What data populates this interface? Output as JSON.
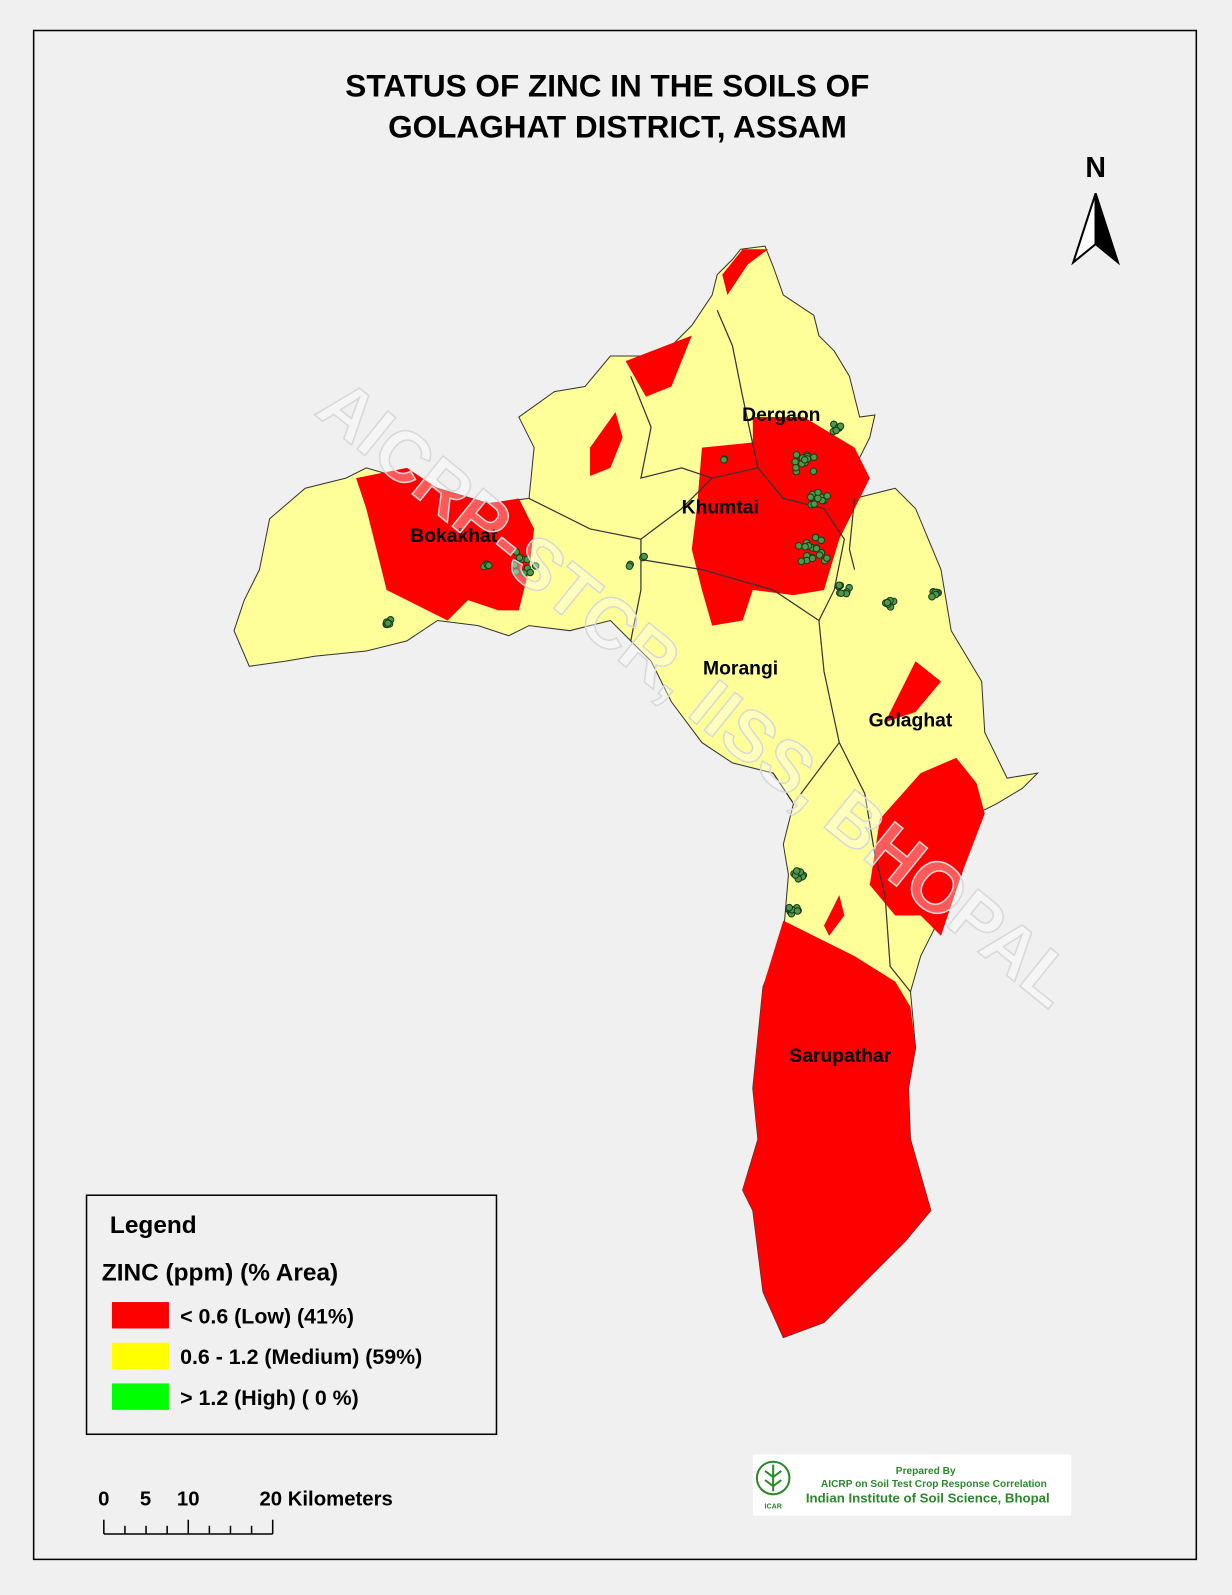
{
  "title": [
    "STATUS OF  ZINC  IN THE SOILS OF",
    "GOLAGHAT  DISTRICT, ASSAM"
  ],
  "north": "N",
  "watermark": "AICRP-STCR, IISS, BHOPAL",
  "regions": [
    "Dergaon",
    "Khumtai",
    "Bokakhat",
    "Morangi",
    "Golaghat",
    "Sarupathar"
  ],
  "legend": {
    "title": "Legend",
    "subtitle": "ZINC (ppm) (% Area)",
    "items": [
      {
        "label": "< 0.6  (Low) (41%)",
        "color": "#ff0000"
      },
      {
        "label": "0.6  - 1.2 (Medium) (59%)",
        "color": "#ffff00"
      },
      {
        "label": "> 1.2  (High) ( 0 %)",
        "color": "#00ff00"
      }
    ]
  },
  "scale": [
    "0",
    "5",
    "10",
    "20 Kilometers"
  ],
  "credits": [
    "Prepared By",
    "AICRP on Soil Test Crop Response Correlation",
    "Indian Institute of Soil Science, Bhopal"
  ],
  "logo": "ICAR"
}
